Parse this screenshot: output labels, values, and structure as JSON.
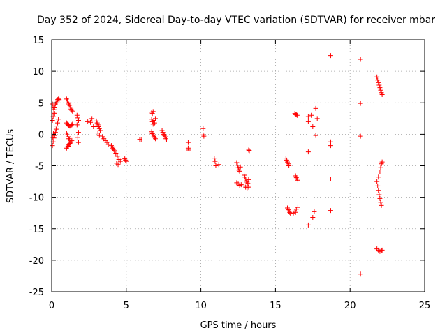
{
  "chart_data": {
    "type": "scatter",
    "title": "Day 352 of 2024, Sidereal Day-to-day VTEC variation (SDTVAR) for receiver mbar",
    "xlabel": "GPS time / hours",
    "ylabel": "SDTVAR / TECUs",
    "xlim": [
      0,
      25
    ],
    "ylim": [
      -25,
      15
    ],
    "x_ticks": [
      "0",
      "5",
      "10",
      "15",
      "20",
      "25"
    ],
    "y_ticks": [
      "-25",
      "-20",
      "-15",
      "-10",
      "-5",
      "0",
      "5",
      "10",
      "15"
    ],
    "x_tick_values": [
      0,
      5,
      10,
      15,
      20,
      25
    ],
    "y_tick_values": [
      -25,
      -20,
      -15,
      -10,
      -5,
      0,
      5,
      10,
      15
    ],
    "grid": true,
    "marker": "+",
    "marker_color": "#ff0000",
    "series": [
      {
        "name": "SDTVAR",
        "points": [
          [
            0.05,
            2.2
          ],
          [
            0.1,
            2.8
          ],
          [
            0.15,
            3.5
          ],
          [
            0.2,
            4.2
          ],
          [
            0.25,
            4.8
          ],
          [
            0.3,
            5.0
          ],
          [
            0.35,
            5.3
          ],
          [
            0.4,
            5.5
          ],
          [
            0.45,
            5.6
          ],
          [
            0.5,
            5.5
          ],
          [
            0.05,
            -1.8
          ],
          [
            0.1,
            -1.2
          ],
          [
            0.15,
            -0.6
          ],
          [
            0.2,
            -0.2
          ],
          [
            0.25,
            0.3
          ],
          [
            0.3,
            0.8
          ],
          [
            0.35,
            1.3
          ],
          [
            0.4,
            1.8
          ],
          [
            0.45,
            2.4
          ],
          [
            0.05,
            4.8
          ],
          [
            0.1,
            4.3
          ],
          [
            0.15,
            3.9
          ],
          [
            0.2,
            3.3
          ],
          [
            0.08,
            -0.5
          ],
          [
            0.12,
            0.2
          ],
          [
            1.0,
            5.6
          ],
          [
            1.05,
            5.3
          ],
          [
            1.1,
            5.0
          ],
          [
            1.15,
            4.8
          ],
          [
            1.2,
            4.6
          ],
          [
            1.25,
            4.3
          ],
          [
            1.3,
            4.0
          ],
          [
            1.35,
            3.8
          ],
          [
            1.4,
            3.6
          ],
          [
            1.0,
            1.8
          ],
          [
            1.05,
            1.6
          ],
          [
            1.1,
            1.5
          ],
          [
            1.15,
            1.4
          ],
          [
            1.2,
            1.3
          ],
          [
            1.25,
            1.3
          ],
          [
            1.3,
            1.4
          ],
          [
            1.35,
            1.5
          ],
          [
            1.4,
            1.6
          ],
          [
            1.0,
            0.2
          ],
          [
            1.05,
            -0.1
          ],
          [
            1.1,
            -0.4
          ],
          [
            1.15,
            -0.7
          ],
          [
            1.2,
            -0.9
          ],
          [
            1.0,
            -2.2
          ],
          [
            1.05,
            -2.0
          ],
          [
            1.1,
            -1.9
          ],
          [
            1.15,
            -1.7
          ],
          [
            1.2,
            -1.5
          ],
          [
            1.25,
            -1.4
          ],
          [
            1.3,
            -1.2
          ],
          [
            1.35,
            -1.0
          ],
          [
            1.7,
            3.0
          ],
          [
            1.75,
            2.6
          ],
          [
            1.8,
            2.2
          ],
          [
            1.7,
            1.5
          ],
          [
            1.8,
            0.3
          ],
          [
            1.75,
            -0.5
          ],
          [
            1.8,
            -1.3
          ],
          [
            2.4,
            2.0
          ],
          [
            2.5,
            2.1
          ],
          [
            2.7,
            2.5
          ],
          [
            2.8,
            1.2
          ],
          [
            2.6,
            1.9
          ],
          [
            3.0,
            2.1
          ],
          [
            3.05,
            1.8
          ],
          [
            3.1,
            1.5
          ],
          [
            3.15,
            1.2
          ],
          [
            3.2,
            0.9
          ],
          [
            3.25,
            0.6
          ],
          [
            3.1,
            0.2
          ],
          [
            3.2,
            -0.2
          ],
          [
            3.4,
            -0.4
          ],
          [
            3.5,
            -0.7
          ],
          [
            3.6,
            -1.0
          ],
          [
            3.7,
            -1.3
          ],
          [
            3.8,
            -1.6
          ],
          [
            4.0,
            -1.8
          ],
          [
            4.05,
            -2.0
          ],
          [
            4.1,
            -2.2
          ],
          [
            4.15,
            -2.4
          ],
          [
            4.2,
            -2.6
          ],
          [
            4.3,
            -3.0
          ],
          [
            4.4,
            -3.5
          ],
          [
            4.5,
            -4.0
          ],
          [
            4.6,
            -4.3
          ],
          [
            4.35,
            -4.6
          ],
          [
            4.45,
            -4.8
          ],
          [
            4.9,
            -3.9
          ],
          [
            4.95,
            -4.1
          ],
          [
            5.0,
            -4.3
          ],
          [
            5.9,
            -0.8
          ],
          [
            6.0,
            -0.9
          ],
          [
            6.7,
            3.5
          ],
          [
            6.75,
            3.3
          ],
          [
            6.8,
            3.6
          ],
          [
            6.7,
            2.4
          ],
          [
            6.75,
            2.0
          ],
          [
            6.8,
            1.6
          ],
          [
            6.85,
            2.2
          ],
          [
            6.9,
            1.8
          ],
          [
            6.95,
            2.5
          ],
          [
            6.7,
            0.4
          ],
          [
            6.75,
            0.1
          ],
          [
            6.8,
            -0.1
          ],
          [
            6.85,
            -0.3
          ],
          [
            6.9,
            -0.5
          ],
          [
            6.95,
            -0.7
          ],
          [
            7.4,
            0.6
          ],
          [
            7.45,
            0.3
          ],
          [
            7.5,
            0.0
          ],
          [
            7.55,
            -0.2
          ],
          [
            7.6,
            -0.4
          ],
          [
            7.65,
            -0.7
          ],
          [
            7.7,
            -0.9
          ],
          [
            9.15,
            -1.3
          ],
          [
            9.2,
            -2.5
          ],
          [
            9.15,
            -2.2
          ],
          [
            10.15,
            0.9
          ],
          [
            10.2,
            -0.3
          ],
          [
            10.15,
            -0.1
          ],
          [
            10.9,
            -3.8
          ],
          [
            10.95,
            -4.3
          ],
          [
            11.0,
            -5.0
          ],
          [
            11.2,
            -4.8
          ],
          [
            12.4,
            -4.5
          ],
          [
            12.45,
            -4.9
          ],
          [
            12.5,
            -5.3
          ],
          [
            12.55,
            -5.7
          ],
          [
            12.6,
            -5.9
          ],
          [
            12.65,
            -5.2
          ],
          [
            12.4,
            -7.7
          ],
          [
            12.5,
            -7.9
          ],
          [
            12.6,
            -8.1
          ],
          [
            12.7,
            -8.0
          ],
          [
            12.9,
            -6.5
          ],
          [
            12.95,
            -6.8
          ],
          [
            13.0,
            -7.1
          ],
          [
            13.05,
            -7.4
          ],
          [
            13.1,
            -7.6
          ],
          [
            13.15,
            -7.8
          ],
          [
            13.2,
            -7.2
          ],
          [
            12.9,
            -8.2
          ],
          [
            13.0,
            -8.4
          ],
          [
            13.1,
            -8.5
          ],
          [
            13.2,
            -8.4
          ],
          [
            13.2,
            -2.5
          ],
          [
            13.25,
            -2.6
          ],
          [
            15.7,
            -3.8
          ],
          [
            15.75,
            -4.1
          ],
          [
            15.8,
            -4.4
          ],
          [
            15.85,
            -4.7
          ],
          [
            15.9,
            -5.0
          ],
          [
            15.8,
            -11.7
          ],
          [
            15.85,
            -12.0
          ],
          [
            15.9,
            -12.2
          ],
          [
            15.95,
            -12.4
          ],
          [
            16.0,
            -12.6
          ],
          [
            16.3,
            3.3
          ],
          [
            16.35,
            3.1
          ],
          [
            16.4,
            3.2
          ],
          [
            16.45,
            3.0
          ],
          [
            16.35,
            -6.6
          ],
          [
            16.4,
            -6.9
          ],
          [
            16.45,
            -7.1
          ],
          [
            16.5,
            -7.3
          ],
          [
            16.2,
            -12.5
          ],
          [
            16.3,
            -12.2
          ],
          [
            16.4,
            -11.9
          ],
          [
            16.5,
            -11.6
          ],
          [
            16.35,
            -12.4
          ],
          [
            17.2,
            2.8
          ],
          [
            17.2,
            2.0
          ],
          [
            17.2,
            -2.8
          ],
          [
            17.2,
            -14.4
          ],
          [
            17.5,
            -13.2
          ],
          [
            17.4,
            3.0
          ],
          [
            17.5,
            1.2
          ],
          [
            17.7,
            4.1
          ],
          [
            17.8,
            2.5
          ],
          [
            17.7,
            -0.2
          ],
          [
            17.6,
            -12.3
          ],
          [
            18.7,
            12.5
          ],
          [
            18.7,
            -1.2
          ],
          [
            18.7,
            -1.8
          ],
          [
            18.7,
            -7.1
          ],
          [
            18.7,
            -12.1
          ],
          [
            20.7,
            11.9
          ],
          [
            20.7,
            4.9
          ],
          [
            20.7,
            -0.3
          ],
          [
            20.7,
            -22.2
          ],
          [
            21.8,
            9.1
          ],
          [
            21.85,
            8.6
          ],
          [
            21.9,
            8.2
          ],
          [
            21.95,
            7.8
          ],
          [
            22.0,
            7.4
          ],
          [
            22.05,
            7.0
          ],
          [
            22.1,
            6.6
          ],
          [
            22.15,
            6.3
          ],
          [
            21.8,
            -7.5
          ],
          [
            21.85,
            -8.2
          ],
          [
            21.9,
            -8.9
          ],
          [
            21.95,
            -9.6
          ],
          [
            22.0,
            -10.2
          ],
          [
            22.05,
            -10.8
          ],
          [
            22.1,
            -11.3
          ],
          [
            21.9,
            -6.8
          ],
          [
            22.0,
            -6.0
          ],
          [
            22.05,
            -5.3
          ],
          [
            22.1,
            -4.7
          ],
          [
            22.15,
            -4.4
          ],
          [
            21.8,
            -18.2
          ],
          [
            21.9,
            -18.4
          ],
          [
            22.0,
            -18.6
          ],
          [
            22.1,
            -18.5
          ],
          [
            22.15,
            -18.4
          ]
        ]
      }
    ]
  }
}
